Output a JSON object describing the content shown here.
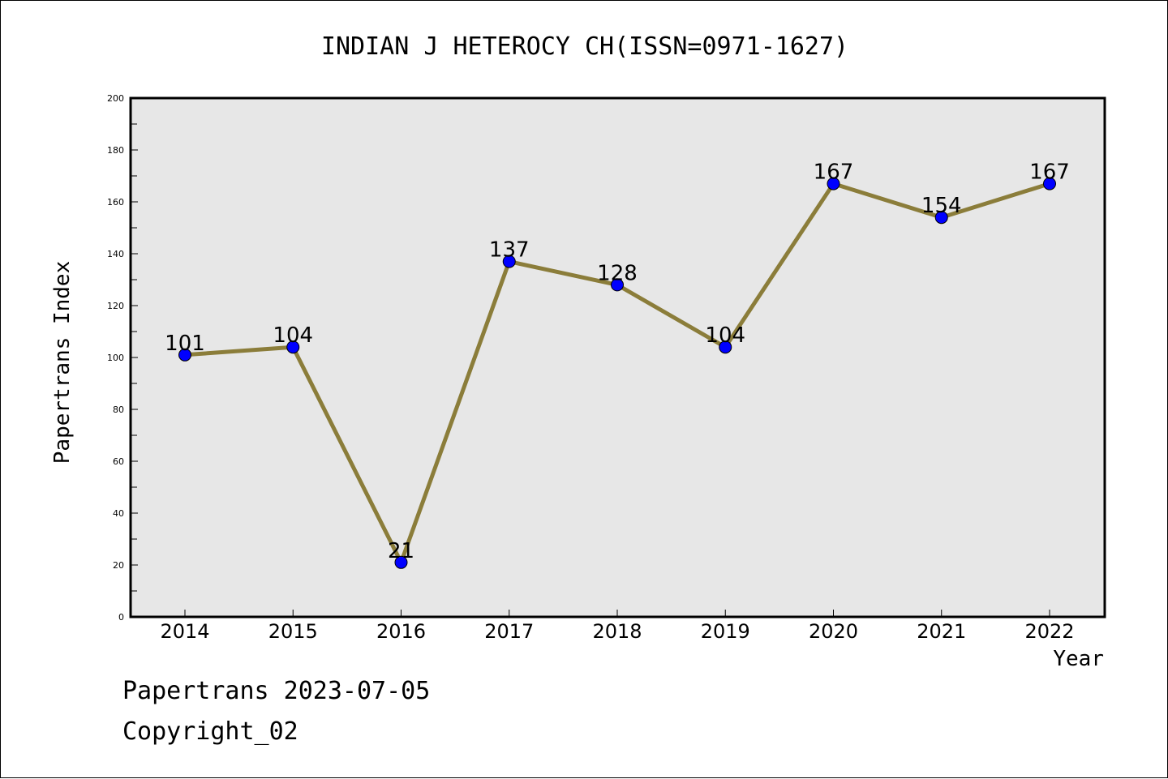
{
  "chart_data": {
    "type": "line",
    "title": "INDIAN J HETEROCY CH(ISSN=0971-1627)",
    "xlabel": "Year",
    "ylabel": "Papertrans Index",
    "categories": [
      "2014",
      "2015",
      "2016",
      "2017",
      "2018",
      "2019",
      "2020",
      "2021",
      "2022"
    ],
    "series": [
      {
        "values": [
          101,
          104,
          21,
          137,
          128,
          104,
          167,
          154,
          167
        ]
      }
    ],
    "ylim": [
      0,
      200
    ],
    "yticks": [
      0,
      20,
      40,
      60,
      80,
      100,
      120,
      140,
      160,
      180,
      200
    ],
    "data_labels": [
      "101",
      "104",
      "21",
      "137",
      "128",
      "104",
      "167",
      "154",
      "167"
    ],
    "grid": false,
    "legend": "none",
    "colors": {
      "plot_background": "#e7e7e7",
      "line": "#8b7d3a",
      "marker": "#0000ff"
    }
  },
  "footer": {
    "generated": "Papertrans 2023-07-05",
    "copyright": "Copyright_02"
  }
}
